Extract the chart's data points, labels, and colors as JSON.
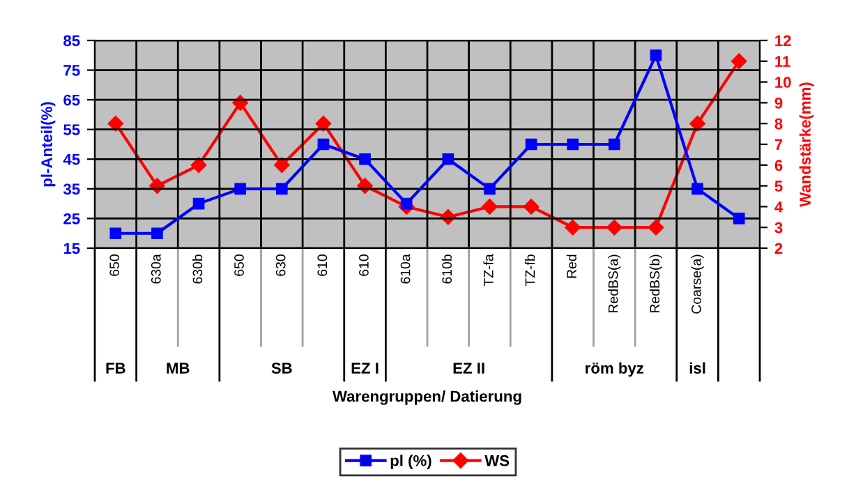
{
  "chart_data": {
    "type": "line",
    "categories": [
      "650",
      "630a",
      "630b",
      "650",
      "630",
      "610",
      "610",
      "610a",
      "610b",
      "TZ-fa",
      "TZ-fb",
      "Red",
      "RedBS(a)",
      "RedBS(b)",
      "Coarse(a)",
      null
    ],
    "series": [
      {
        "name": "pl (%)",
        "color": "#0000ff",
        "marker": "square",
        "values": [
          20,
          20,
          30,
          35,
          35,
          50,
          45,
          30,
          45,
          35,
          50,
          50,
          50,
          80,
          35,
          25
        ]
      },
      {
        "name": "WS",
        "color": "#ff0000",
        "marker": "diamond",
        "axis": "y2",
        "values": [
          8,
          5,
          6,
          9,
          6,
          8,
          5,
          4,
          3.5,
          4,
          4,
          3,
          3,
          3,
          8,
          11
        ]
      }
    ],
    "xlabel": "Warengruppen/ Datierung",
    "ylabel": "pl-Anteil(%)",
    "y2label": "Wandstärke(mm)",
    "ylim": [
      15,
      85
    ],
    "yticks": [
      15,
      25,
      35,
      45,
      55,
      65,
      75,
      85
    ],
    "y2lim": [
      2,
      12
    ],
    "y2ticks": [
      2,
      3,
      4,
      5,
      6,
      7,
      8,
      9,
      10,
      11,
      12
    ],
    "annotations": [
      "FB",
      "MB",
      "SB",
      "EZ I",
      "EZ II",
      "röm byz",
      "isl"
    ],
    "grid": true,
    "legend": "bottom",
    "line_style": "solid"
  }
}
